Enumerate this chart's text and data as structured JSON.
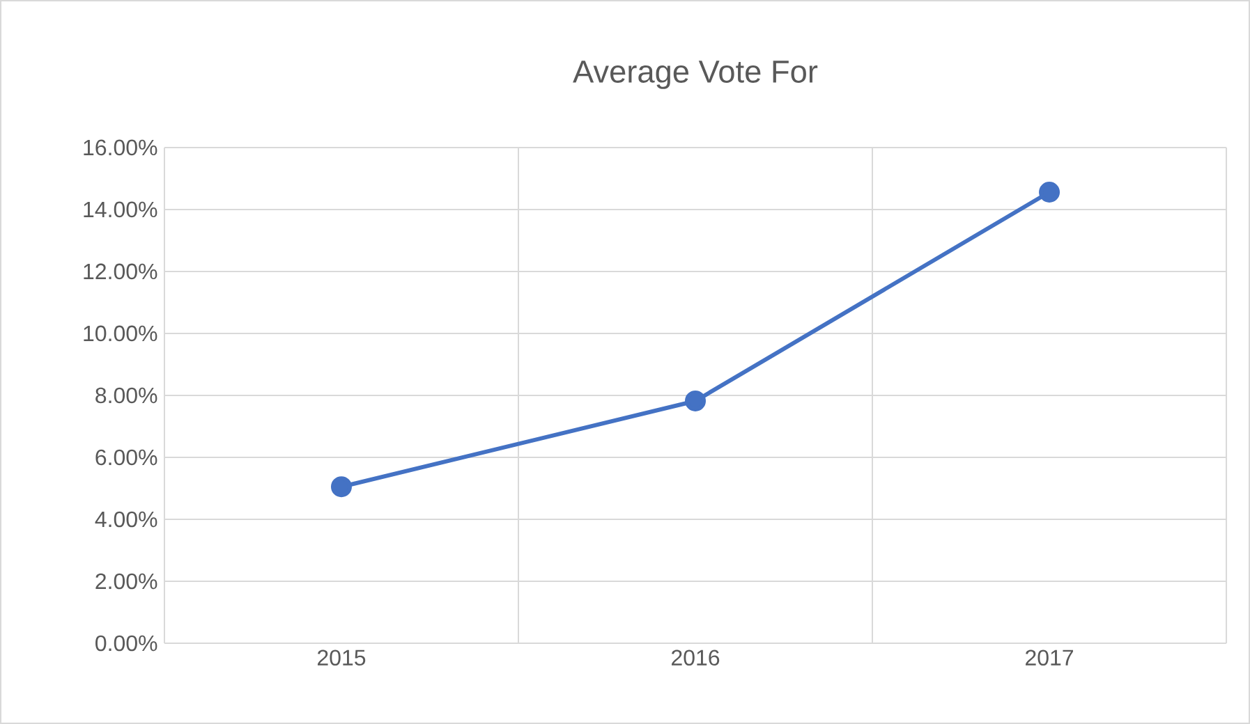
{
  "chart_data": {
    "type": "line",
    "title": "Average Vote For",
    "categories": [
      "2015",
      "2016",
      "2017"
    ],
    "series": [
      {
        "color": "#4472c4",
        "values": [
          0.0505,
          0.0782,
          0.1456
        ]
      }
    ],
    "ylim": [
      0,
      0.16
    ],
    "yticks": [
      {
        "value": 0,
        "label": "0.00%"
      },
      {
        "value": 0.02,
        "label": "2.00%"
      },
      {
        "value": 0.04,
        "label": "4.00%"
      },
      {
        "value": 0.06,
        "label": "6.00%"
      },
      {
        "value": 0.08,
        "label": "8.00%"
      },
      {
        "value": 0.1,
        "label": "10.00%"
      },
      {
        "value": 0.12,
        "label": "12.00%"
      },
      {
        "value": 0.14,
        "label": "14.00%"
      },
      {
        "value": 0.16,
        "label": "16.00%"
      }
    ],
    "grid": true,
    "legend": false,
    "marker": "circle",
    "line_style": "solid"
  }
}
